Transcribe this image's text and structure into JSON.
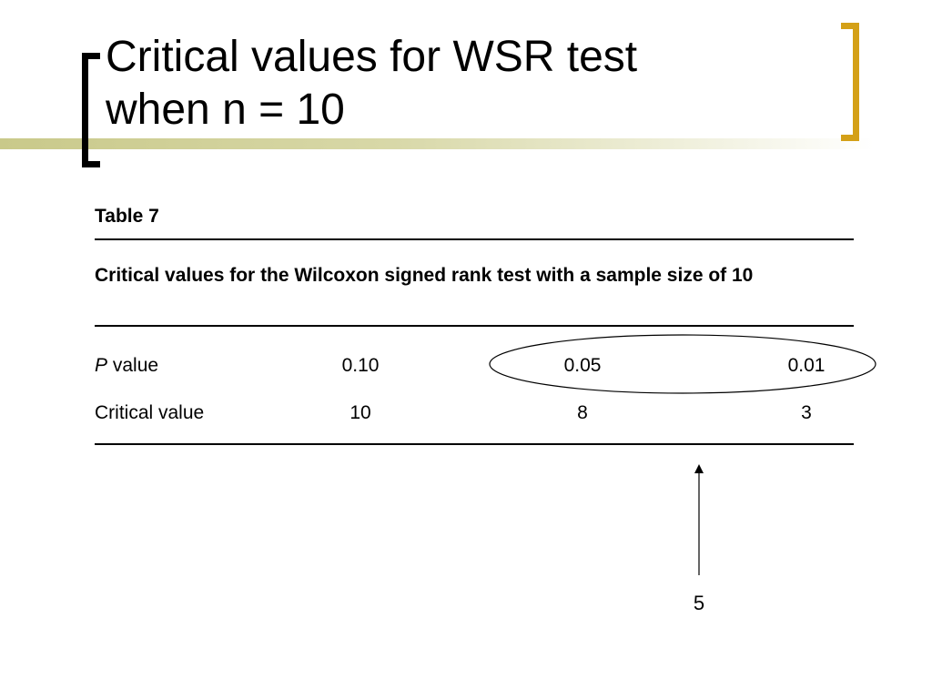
{
  "slide": {
    "title_line1": "Critical values for WSR test",
    "title_line2": "when n = 10"
  },
  "table": {
    "label": "Table 7",
    "caption": "Critical values for the Wilcoxon signed rank test with a sample size of 10",
    "rows": [
      {
        "label_italic": "P",
        "label_rest": " value",
        "values": [
          "0.10",
          "0.05",
          "0.01"
        ]
      },
      {
        "label_italic": "",
        "label_rest": "Critical value",
        "values": [
          "10",
          "8",
          "3"
        ]
      }
    ]
  },
  "annotation": {
    "note": "5"
  }
}
